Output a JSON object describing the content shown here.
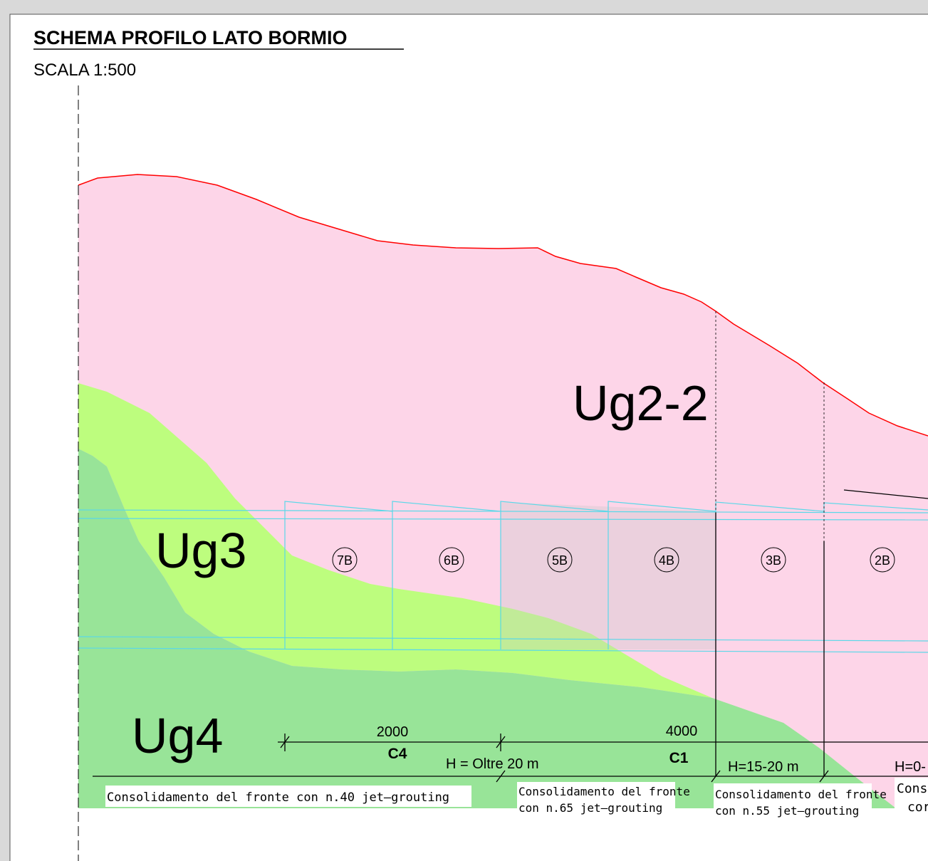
{
  "header": {
    "title": "SCHEMA PROFILO LATO BORMIO",
    "scale": "SCALA 1:500"
  },
  "zones": [
    "Ug2-2",
    "Ug3",
    "Ug4"
  ],
  "segments": [
    "7B",
    "6B",
    "5B",
    "4B",
    "3B",
    "2B"
  ],
  "dimensions": [
    "2000",
    "4000"
  ],
  "classes": [
    "C4",
    "C1"
  ],
  "heights": [
    "H = Oltre 20 m",
    "H=15-20 m",
    "H=0-"
  ],
  "notes": [
    [
      "Consolidamento del fronte con n.40 jet–grouting"
    ],
    [
      "Consolidamento del fronte",
      "con n.65 jet–grouting"
    ],
    [
      "Consolidamento del fronte",
      "con n.55 jet–grouting"
    ],
    [
      "Cons",
      "cor"
    ]
  ]
}
